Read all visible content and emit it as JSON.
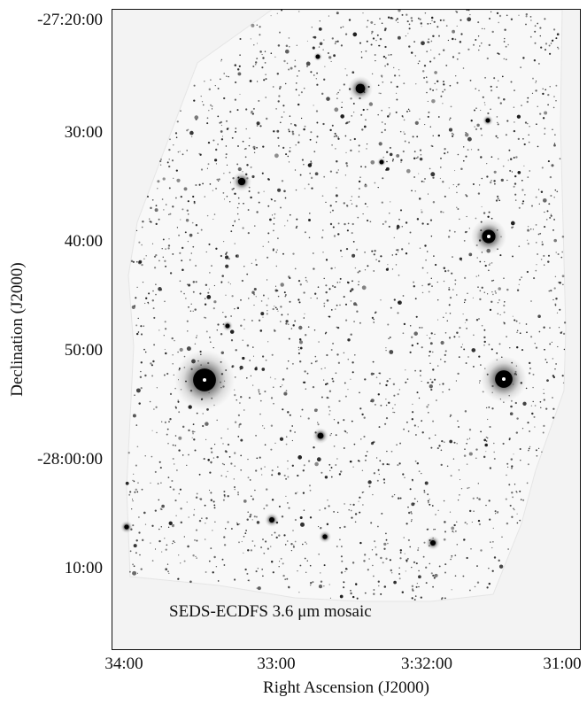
{
  "figure": {
    "y_axis": {
      "label": "Declination (J2000)",
      "ticks": [
        "-27:20:00",
        "30:00",
        "40:00",
        "50:00",
        "-28:00:00",
        "10:00"
      ]
    },
    "x_axis": {
      "label": "Right Ascension (J2000)",
      "ticks": [
        "34:00",
        "33:00",
        "3:32:00",
        "31:00"
      ]
    },
    "caption": "SEDS-ECDFS 3.6 μm mosaic",
    "colors": {
      "background": "#ffffff",
      "sky": "#f7f7f7",
      "star": "#111111",
      "axis": "#111111"
    }
  }
}
